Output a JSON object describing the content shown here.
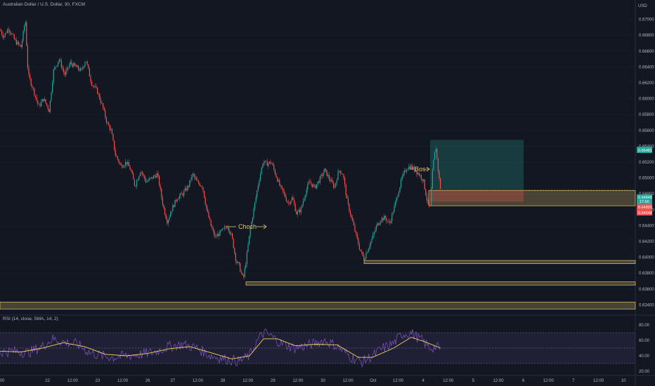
{
  "header": {
    "title": "Australian Dollar / U.S. Dollar, 30, FXCM"
  },
  "rsi_panel": {
    "legend": "RSI (14, close, SMA, 14, 2)"
  },
  "annotations": {
    "choch": "Choch",
    "bos": "Bos"
  },
  "price_tags": {
    "top": "0.65481",
    "mid1": "0.64848",
    "mid2": "17:56",
    "mid3": "0.64820",
    "bottom": "0.64648"
  },
  "colors": {
    "background": "#131722",
    "up": "#26a69a",
    "down": "#ef5350",
    "zone": "#e6c86a",
    "rsi": "#7e57c2",
    "rsi_ma": "#f7d157"
  },
  "chart_data": {
    "type": "candlestick",
    "title": "Australian Dollar / U.S. Dollar, 30, FXCM",
    "currency": "USD",
    "y_ticks": [
      "0.67000",
      "0.66800",
      "0.66600",
      "0.66400",
      "0.66200",
      "0.66000",
      "0.65800",
      "0.65600",
      "0.65400",
      "0.65200",
      "0.65000",
      "0.64800",
      "0.64600",
      "0.64400",
      "0.64200",
      "0.64000",
      "0.63800",
      "0.63600",
      "0.63400"
    ],
    "x_ticks": [
      "00",
      "22",
      "12:00",
      "23",
      "12:00",
      "26",
      "27",
      "12:00",
      "28",
      "12:00",
      "29",
      "12:00",
      "30",
      "12:00",
      "Oct",
      "12:00",
      "4",
      "12:00",
      "5",
      "12:00",
      "6",
      "12:00",
      "7",
      "12:00",
      "10"
    ],
    "ylim": [
      0.6328,
      0.6712
    ],
    "close_path": [
      [
        0,
        0.6687
      ],
      [
        5,
        0.6678
      ],
      [
        12,
        0.6689
      ],
      [
        22,
        0.6672
      ],
      [
        30,
        0.6665
      ],
      [
        36,
        0.67
      ],
      [
        40,
        0.663
      ],
      [
        48,
        0.661
      ],
      [
        55,
        0.659
      ],
      [
        62,
        0.66
      ],
      [
        70,
        0.6585
      ],
      [
        76,
        0.6635
      ],
      [
        84,
        0.665
      ],
      [
        92,
        0.663
      ],
      [
        100,
        0.6645
      ],
      [
        108,
        0.664
      ],
      [
        116,
        0.6635
      ],
      [
        122,
        0.665
      ],
      [
        130,
        0.662
      ],
      [
        138,
        0.661
      ],
      [
        146,
        0.659
      ],
      [
        152,
        0.657
      ],
      [
        158,
        0.656
      ],
      [
        164,
        0.653
      ],
      [
        172,
        0.6515
      ],
      [
        180,
        0.652
      ],
      [
        186,
        0.651
      ],
      [
        192,
        0.649
      ],
      [
        200,
        0.651
      ],
      [
        208,
        0.6495
      ],
      [
        216,
        0.65
      ],
      [
        224,
        0.6505
      ],
      [
        232,
        0.6465
      ],
      [
        238,
        0.6445
      ],
      [
        244,
        0.646
      ],
      [
        252,
        0.6475
      ],
      [
        260,
        0.648
      ],
      [
        268,
        0.649
      ],
      [
        274,
        0.6505
      ],
      [
        280,
        0.6495
      ],
      [
        288,
        0.649
      ],
      [
        294,
        0.646
      ],
      [
        300,
        0.644
      ],
      [
        306,
        0.6425
      ],
      [
        312,
        0.643
      ],
      [
        318,
        0.6435
      ],
      [
        324,
        0.644
      ],
      [
        330,
        0.6425
      ],
      [
        336,
        0.6395
      ],
      [
        340,
        0.639
      ],
      [
        346,
        0.6372
      ],
      [
        350,
        0.6395
      ],
      [
        356,
        0.6435
      ],
      [
        362,
        0.6465
      ],
      [
        368,
        0.6495
      ],
      [
        374,
        0.652
      ],
      [
        380,
        0.6518
      ],
      [
        386,
        0.652
      ],
      [
        392,
        0.6505
      ],
      [
        398,
        0.649
      ],
      [
        404,
        0.648
      ],
      [
        410,
        0.6468
      ],
      [
        416,
        0.6475
      ],
      [
        422,
        0.6455
      ],
      [
        428,
        0.646
      ],
      [
        434,
        0.648
      ],
      [
        440,
        0.6495
      ],
      [
        448,
        0.6488
      ],
      [
        456,
        0.65
      ],
      [
        462,
        0.651
      ],
      [
        468,
        0.65
      ],
      [
        476,
        0.6488
      ],
      [
        482,
        0.651
      ],
      [
        488,
        0.6505
      ],
      [
        494,
        0.647
      ],
      [
        500,
        0.645
      ],
      [
        506,
        0.643
      ],
      [
        512,
        0.641
      ],
      [
        518,
        0.6398
      ],
      [
        524,
        0.6412
      ],
      [
        530,
        0.6425
      ],
      [
        536,
        0.644
      ],
      [
        542,
        0.6448
      ],
      [
        548,
        0.645
      ],
      [
        554,
        0.6442
      ],
      [
        560,
        0.646
      ],
      [
        566,
        0.648
      ],
      [
        572,
        0.65
      ],
      [
        578,
        0.6512
      ],
      [
        584,
        0.6515
      ],
      [
        590,
        0.651
      ],
      [
        596,
        0.6505
      ],
      [
        602,
        0.6498
      ],
      [
        608,
        0.647
      ],
      [
        612,
        0.646
      ],
      [
        616,
        0.6515
      ],
      [
        620,
        0.654
      ],
      [
        624,
        0.6505
      ],
      [
        627,
        0.6485
      ]
    ],
    "rsi": {
      "name": "RSI (14, close, SMA, 14, 2)",
      "ylim": [
        20,
        80
      ],
      "ticks": [
        "80.00",
        "60.00",
        "40.00",
        "20.00"
      ],
      "bands": [
        70,
        50,
        30
      ],
      "rsi_path": [
        [
          0,
          45
        ],
        [
          20,
          46
        ],
        [
          40,
          44
        ],
        [
          60,
          52
        ],
        [
          75,
          62
        ],
        [
          90,
          58
        ],
        [
          110,
          55
        ],
        [
          128,
          44
        ],
        [
          145,
          40
        ],
        [
          160,
          38
        ],
        [
          180,
          40
        ],
        [
          200,
          42
        ],
        [
          220,
          45
        ],
        [
          240,
          52
        ],
        [
          260,
          55
        ],
        [
          280,
          50
        ],
        [
          300,
          40
        ],
        [
          320,
          36
        ],
        [
          340,
          33
        ],
        [
          355,
          40
        ],
        [
          365,
          58
        ],
        [
          375,
          70
        ],
        [
          385,
          66
        ],
        [
          400,
          56
        ],
        [
          420,
          50
        ],
        [
          440,
          54
        ],
        [
          462,
          60
        ],
        [
          480,
          52
        ],
        [
          500,
          38
        ],
        [
          515,
          32
        ],
        [
          530,
          40
        ],
        [
          545,
          50
        ],
        [
          560,
          56
        ],
        [
          572,
          68
        ],
        [
          585,
          70
        ],
        [
          600,
          60
        ],
        [
          612,
          50
        ],
        [
          620,
          52
        ],
        [
          627,
          48
        ]
      ],
      "ma_path": [
        [
          0,
          46
        ],
        [
          30,
          45
        ],
        [
          60,
          50
        ],
        [
          90,
          57
        ],
        [
          120,
          52
        ],
        [
          150,
          42
        ],
        [
          180,
          40
        ],
        [
          210,
          43
        ],
        [
          240,
          49
        ],
        [
          270,
          52
        ],
        [
          300,
          44
        ],
        [
          330,
          36
        ],
        [
          355,
          40
        ],
        [
          375,
          62
        ],
        [
          395,
          62
        ],
        [
          420,
          53
        ],
        [
          450,
          55
        ],
        [
          480,
          54
        ],
        [
          510,
          38
        ],
        [
          530,
          38
        ],
        [
          560,
          50
        ],
        [
          585,
          64
        ],
        [
          605,
          58
        ],
        [
          627,
          50
        ]
      ]
    },
    "zones": [
      {
        "from": 0.63435,
        "to": 0.63348,
        "x0": 0,
        "x1": 904
      },
      {
        "from": 0.6369,
        "to": 0.6365,
        "x0": 350,
        "x1": 904
      },
      {
        "from": 0.6396,
        "to": 0.6392,
        "x0": 518,
        "x1": 904
      },
      {
        "from": 0.6484,
        "to": 0.6465,
        "x0": 610,
        "x1": 904
      }
    ],
    "position": {
      "entry": 0.64848,
      "target": 0.65481,
      "stop": 0.647,
      "x0": 612,
      "x1": 745
    }
  }
}
